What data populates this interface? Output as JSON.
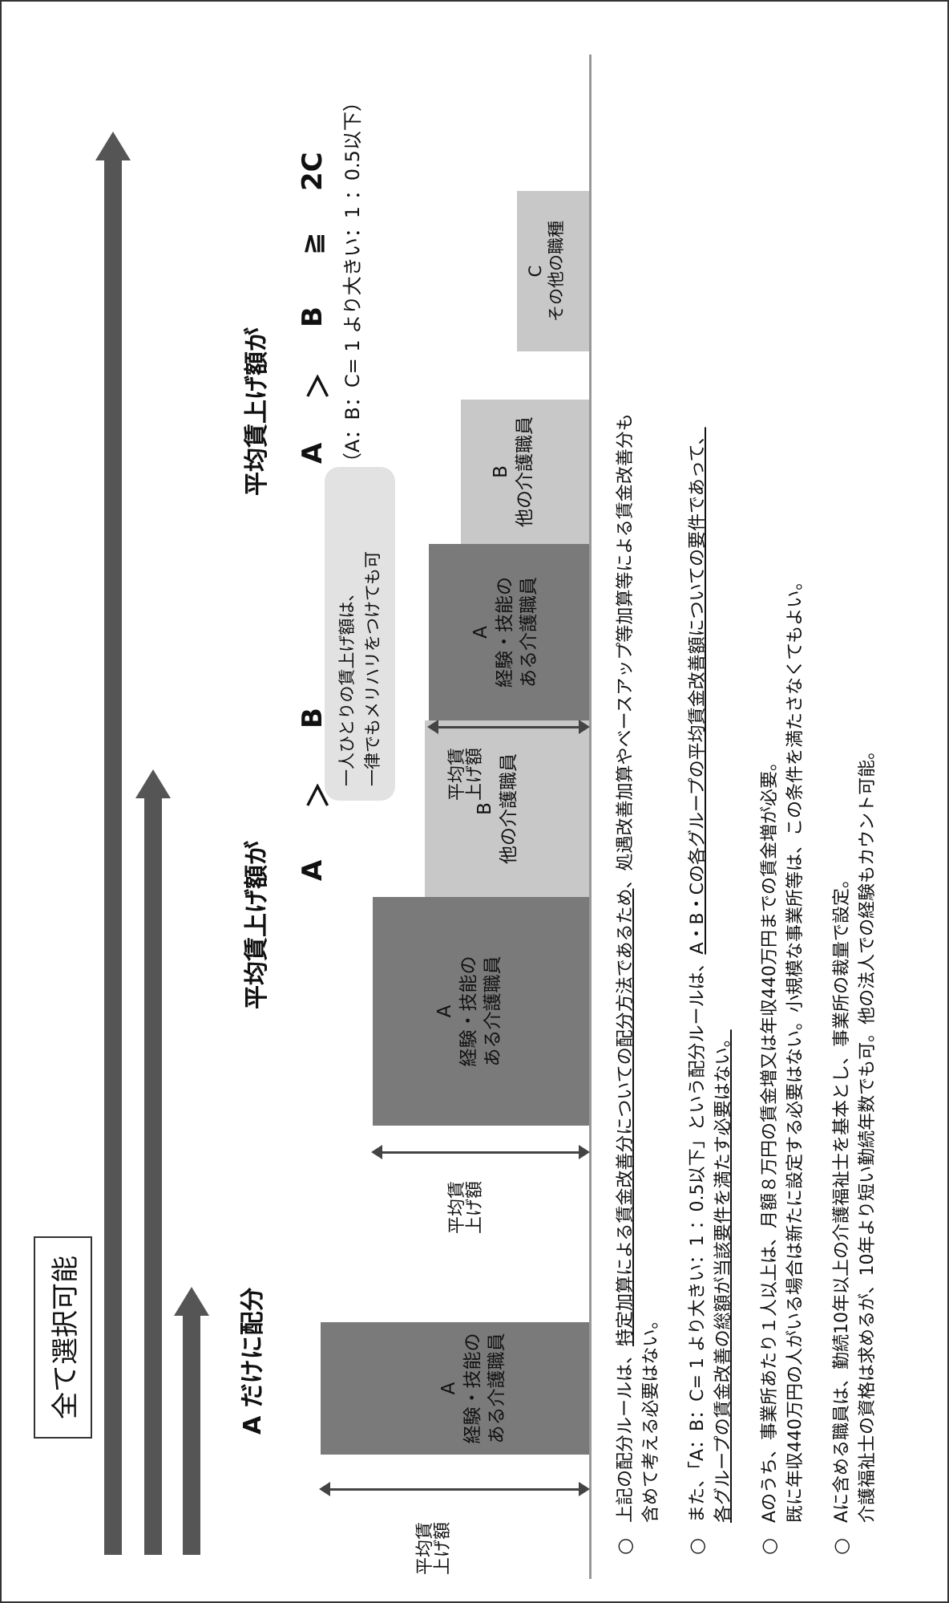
{
  "badge": "全て選択可能",
  "cases": {
    "one": {
      "header": "A だけに配分",
      "a_line1": "A",
      "a_line2": "経験・技能の",
      "a_line3": "ある介護職員"
    },
    "two": {
      "header": "平均賃上げ額が",
      "sym_a": "A",
      "sym_gt": "＞",
      "sym_b": "B",
      "a_line1": "A",
      "a_line2": "経験・技能の",
      "a_line3": "ある介護職員",
      "b_line1": "B",
      "b_line2": "他の介護職員",
      "callout1": "一人ひとりの賃上げ額は、",
      "callout2": "一律でもメリハリをつけても可"
    },
    "three": {
      "header": "平均賃上げ額が",
      "sym_a": "A",
      "sym_gt": "＞",
      "sym_b": "B",
      "sym_ge": "≧",
      "sym_c": "2C",
      "ratio": "（A：B：C= 1 より大きい：1 ：0.5以下）",
      "a_line1": "A",
      "a_line2": "経験・技能の",
      "a_line3": "ある介護職員",
      "b_line1": "B",
      "b_line2": "他の介護職員",
      "c_line1": "C",
      "c_line2": "その他の職種"
    }
  },
  "axis_label": [
    "平",
    "均",
    "賃",
    "上",
    "げ",
    "額"
  ],
  "notes": {
    "marker": "○",
    "n1_a": "上記の配分ルールは、",
    "n1_b": "特定加算による賃金改善分についての配分方法であるため",
    "n1_c": "、処遇改善加算やベースアップ等加算等による賃金改善分も",
    "n1_d": "含めて考える必要はない。",
    "n2_a": "また、「A：B：C= 1 より大きい：1 ：0.5以下」という配分ルールは、",
    "n2_b": "A・B・Cの各グループの平均賃金改善額についての要件であって、",
    "n2_c": "各グループの賃金改善の総額が当該要件を満たす必要はない。",
    "n3_a": "Aのうち、事業所あたり１人以上は、月額８万円の賃金増又は年収440万円までの賃金増が必要。",
    "n3_b": "既に年収440万円の人がいる場合は新たに設定する必要はない。小規模な事業所等は、この条件を満たさなくてもよい。",
    "n4_a": "Aに含める職員は、勤続10年以上の介護福祉士を基本とし、事業所の裁量で設定。",
    "n4_b": "介護福祉士の資格は求めるが、10年より短い勤続年数でも可。他の法人での経験もカウント可能。"
  }
}
